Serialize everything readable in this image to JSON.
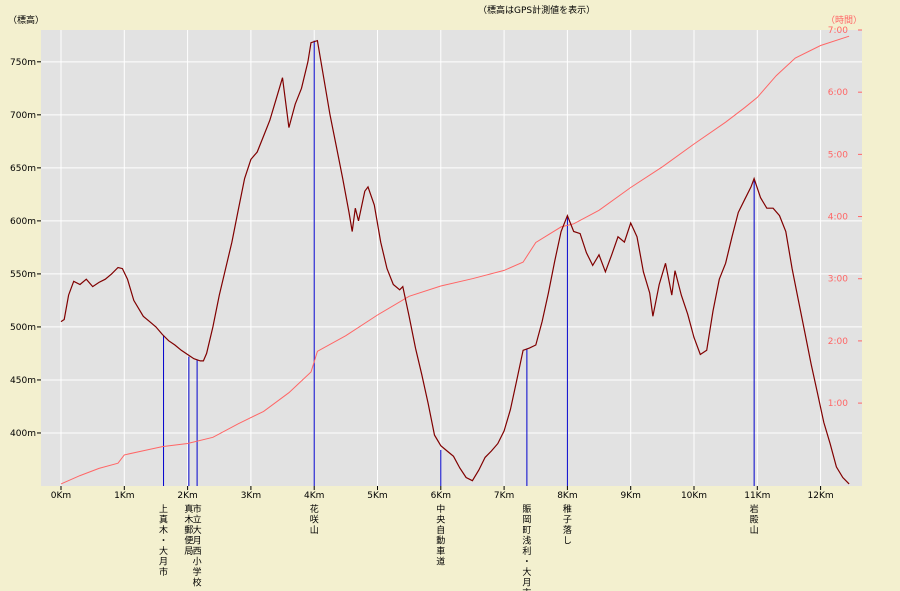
{
  "chart_data": {
    "type": "line",
    "title": "（標高はGPS計測値を表示）",
    "ylabel_left": "（標高）",
    "ylabel_right": "（時間）",
    "xlim": [
      0,
      12.6
    ],
    "ylim_left": [
      350,
      780
    ],
    "ylim_right_minutes": [
      -20,
      420
    ],
    "x_ticks": [
      {
        "v": 0,
        "label": "0Km"
      },
      {
        "v": 1,
        "label": "1Km"
      },
      {
        "v": 2,
        "label": "2Km"
      },
      {
        "v": 3,
        "label": "3Km"
      },
      {
        "v": 4,
        "label": "4Km"
      },
      {
        "v": 5,
        "label": "5Km"
      },
      {
        "v": 6,
        "label": "6Km"
      },
      {
        "v": 7,
        "label": "7Km"
      },
      {
        "v": 8,
        "label": "8Km"
      },
      {
        "v": 9,
        "label": "9Km"
      },
      {
        "v": 10,
        "label": "10Km"
      },
      {
        "v": 11,
        "label": "11Km"
      },
      {
        "v": 12,
        "label": "12Km"
      }
    ],
    "y_ticks_left": [
      {
        "v": 400,
        "label": "400m"
      },
      {
        "v": 450,
        "label": "450m"
      },
      {
        "v": 500,
        "label": "500m"
      },
      {
        "v": 550,
        "label": "550m"
      },
      {
        "v": 600,
        "label": "600m"
      },
      {
        "v": 650,
        "label": "650m"
      },
      {
        "v": 700,
        "label": "700m"
      },
      {
        "v": 750,
        "label": "750m"
      }
    ],
    "y_ticks_right": [
      {
        "v": 60,
        "label": "1:00"
      },
      {
        "v": 120,
        "label": "2:00"
      },
      {
        "v": 180,
        "label": "3:00"
      },
      {
        "v": 240,
        "label": "4:00"
      },
      {
        "v": 300,
        "label": "5:00"
      },
      {
        "v": 360,
        "label": "6:00"
      },
      {
        "v": 420,
        "label": "7:00"
      }
    ],
    "grid": true,
    "series": [
      {
        "name": "",
        "axis": "left",
        "color": "#800000",
        "points": [
          [
            0.0,
            505
          ],
          [
            0.05,
            507
          ],
          [
            0.12,
            530
          ],
          [
            0.2,
            543
          ],
          [
            0.3,
            540
          ],
          [
            0.4,
            545
          ],
          [
            0.5,
            538
          ],
          [
            0.6,
            542
          ],
          [
            0.7,
            545
          ],
          [
            0.8,
            550
          ],
          [
            0.9,
            556
          ],
          [
            0.97,
            555
          ],
          [
            1.05,
            545
          ],
          [
            1.15,
            525
          ],
          [
            1.3,
            510
          ],
          [
            1.4,
            505
          ],
          [
            1.5,
            500
          ],
          [
            1.6,
            493
          ],
          [
            1.7,
            487
          ],
          [
            1.8,
            483
          ],
          [
            1.9,
            478
          ],
          [
            2.0,
            474
          ],
          [
            2.1,
            470
          ],
          [
            2.2,
            468
          ],
          [
            2.25,
            468
          ],
          [
            2.3,
            475
          ],
          [
            2.4,
            500
          ],
          [
            2.5,
            530
          ],
          [
            2.6,
            555
          ],
          [
            2.7,
            580
          ],
          [
            2.8,
            610
          ],
          [
            2.9,
            640
          ],
          [
            3.0,
            658
          ],
          [
            3.1,
            665
          ],
          [
            3.2,
            680
          ],
          [
            3.3,
            695
          ],
          [
            3.4,
            715
          ],
          [
            3.5,
            735
          ],
          [
            3.6,
            688
          ],
          [
            3.7,
            710
          ],
          [
            3.8,
            725
          ],
          [
            3.9,
            750
          ],
          [
            3.95,
            768
          ],
          [
            4.05,
            770
          ],
          [
            4.15,
            735
          ],
          [
            4.25,
            700
          ],
          [
            4.35,
            670
          ],
          [
            4.45,
            640
          ],
          [
            4.55,
            608
          ],
          [
            4.6,
            590
          ],
          [
            4.65,
            612
          ],
          [
            4.7,
            600
          ],
          [
            4.8,
            628
          ],
          [
            4.85,
            632
          ],
          [
            4.95,
            615
          ],
          [
            5.05,
            580
          ],
          [
            5.15,
            555
          ],
          [
            5.25,
            540
          ],
          [
            5.35,
            535
          ],
          [
            5.4,
            538
          ],
          [
            5.5,
            510
          ],
          [
            5.6,
            480
          ],
          [
            5.7,
            455
          ],
          [
            5.8,
            428
          ],
          [
            5.9,
            398
          ],
          [
            6.0,
            388
          ],
          [
            6.1,
            383
          ],
          [
            6.2,
            378
          ],
          [
            6.3,
            367
          ],
          [
            6.4,
            358
          ],
          [
            6.5,
            355
          ],
          [
            6.6,
            365
          ],
          [
            6.7,
            377
          ],
          [
            6.8,
            383
          ],
          [
            6.9,
            390
          ],
          [
            7.0,
            402
          ],
          [
            7.1,
            422
          ],
          [
            7.2,
            450
          ],
          [
            7.3,
            478
          ],
          [
            7.4,
            480
          ],
          [
            7.5,
            483
          ],
          [
            7.6,
            505
          ],
          [
            7.7,
            532
          ],
          [
            7.8,
            562
          ],
          [
            7.9,
            590
          ],
          [
            8.0,
            605
          ],
          [
            8.1,
            590
          ],
          [
            8.2,
            588
          ],
          [
            8.3,
            570
          ],
          [
            8.4,
            558
          ],
          [
            8.5,
            568
          ],
          [
            8.6,
            552
          ],
          [
            8.7,
            568
          ],
          [
            8.8,
            585
          ],
          [
            8.9,
            580
          ],
          [
            9.0,
            598
          ],
          [
            9.1,
            585
          ],
          [
            9.2,
            552
          ],
          [
            9.3,
            532
          ],
          [
            9.35,
            510
          ],
          [
            9.45,
            540
          ],
          [
            9.55,
            560
          ],
          [
            9.65,
            530
          ],
          [
            9.7,
            553
          ],
          [
            9.8,
            530
          ],
          [
            9.9,
            512
          ],
          [
            10.0,
            490
          ],
          [
            10.1,
            474
          ],
          [
            10.2,
            478
          ],
          [
            10.3,
            515
          ],
          [
            10.4,
            545
          ],
          [
            10.5,
            560
          ],
          [
            10.6,
            585
          ],
          [
            10.7,
            608
          ],
          [
            10.8,
            620
          ],
          [
            10.9,
            632
          ],
          [
            10.95,
            640
          ],
          [
            11.05,
            622
          ],
          [
            11.15,
            612
          ],
          [
            11.25,
            612
          ],
          [
            11.35,
            605
          ],
          [
            11.45,
            590
          ],
          [
            11.55,
            555
          ],
          [
            11.65,
            525
          ],
          [
            11.75,
            495
          ],
          [
            11.85,
            465
          ],
          [
            11.95,
            438
          ],
          [
            12.05,
            410
          ],
          [
            12.15,
            390
          ],
          [
            12.25,
            368
          ],
          [
            12.35,
            358
          ],
          [
            12.45,
            352
          ]
        ]
      },
      {
        "name": "",
        "axis": "right",
        "color": "#ff6666",
        "points": [
          [
            0.0,
            -18
          ],
          [
            0.3,
            -10
          ],
          [
            0.6,
            -3
          ],
          [
            0.9,
            2
          ],
          [
            1.0,
            10
          ],
          [
            1.3,
            14
          ],
          [
            1.6,
            18
          ],
          [
            2.0,
            21
          ],
          [
            2.4,
            27
          ],
          [
            2.8,
            40
          ],
          [
            3.2,
            52
          ],
          [
            3.6,
            70
          ],
          [
            3.95,
            90
          ],
          [
            4.05,
            110
          ],
          [
            4.5,
            125
          ],
          [
            5.0,
            145
          ],
          [
            5.5,
            163
          ],
          [
            6.0,
            173
          ],
          [
            6.5,
            180
          ],
          [
            7.0,
            188
          ],
          [
            7.3,
            196
          ],
          [
            7.5,
            215
          ],
          [
            7.9,
            230
          ],
          [
            8.1,
            233
          ],
          [
            8.5,
            246
          ],
          [
            9.0,
            268
          ],
          [
            9.5,
            288
          ],
          [
            10.0,
            310
          ],
          [
            10.5,
            331
          ],
          [
            10.8,
            345
          ],
          [
            11.0,
            355
          ],
          [
            11.3,
            376
          ],
          [
            11.6,
            393
          ],
          [
            12.0,
            405
          ],
          [
            12.45,
            414
          ]
        ]
      }
    ],
    "landmarks": [
      {
        "x": 1.62,
        "elev": 492,
        "label": "上真木・大月市"
      },
      {
        "x": 2.02,
        "elev": 472,
        "label": "真木郵便局"
      },
      {
        "x": 2.15,
        "elev": 469,
        "label": "市立大月西小学校"
      },
      {
        "x": 4.0,
        "elev": 770,
        "label": "花咲山"
      },
      {
        "x": 6.0,
        "elev": 384,
        "label": "中央自動車道"
      },
      {
        "x": 7.36,
        "elev": 479,
        "label": "賑岡町浅利・大月市"
      },
      {
        "x": 8.0,
        "elev": 604,
        "label": "稚子落し"
      },
      {
        "x": 10.95,
        "elev": 638,
        "label": "岩殿山"
      }
    ]
  }
}
